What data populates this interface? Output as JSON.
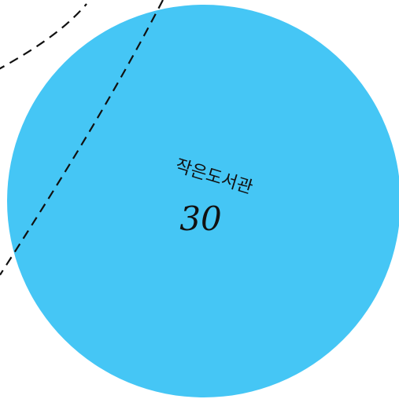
{
  "bubble": {
    "name": "작은도서관",
    "count": "30",
    "fill_color": "#45c6f5"
  },
  "route": {
    "stroke_color": "#111111",
    "style": "dashed"
  }
}
